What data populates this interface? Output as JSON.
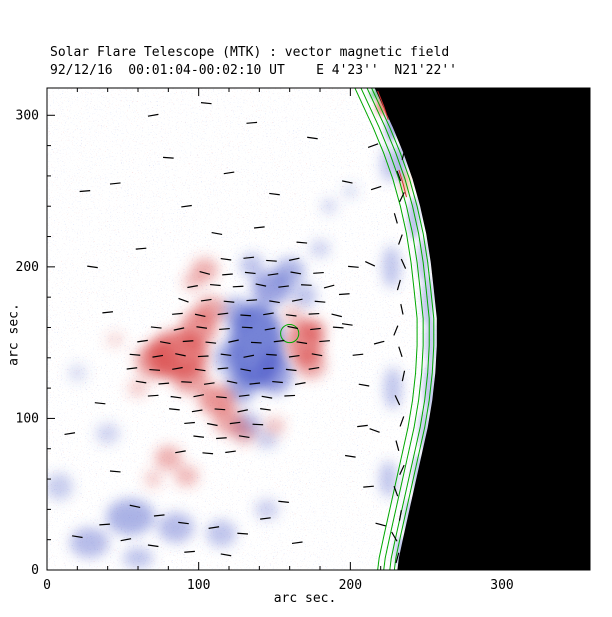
{
  "figure": {
    "title": "Solar Flare Telescope (MTK) : vector magnetic field",
    "subtitle": "92/12/16  00:01:04-00:02:10 UT    E 4'23''  N21'22''",
    "date": "92/12/16",
    "time_range": "00:01:04-00:02:10 UT",
    "position": "E 4'23''  N21'22''",
    "xlabel": "arc sec.",
    "ylabel": "arc sec."
  },
  "chart_data": {
    "type": "heatmap",
    "title": "Solar Flare Telescope (MTK) : vector magnetic field",
    "subtitle": "92/12/16  00:01:04-00:02:10 UT    E 4'23''  N21'22''",
    "xlabel": "arc sec.",
    "ylabel": "arc sec.",
    "xlim": [
      0,
      358
    ],
    "ylim": [
      0,
      318
    ],
    "xticks": [
      0,
      100,
      200,
      300
    ],
    "yticks": [
      0,
      100,
      200,
      300
    ],
    "minor_tick_step": 20,
    "legend": "none",
    "description": "Vector magnetogram of an active region near the solar limb: red = positive line-of-sight polarity, blue = negative polarity, black = off-limb sky, short black bars = transverse field vectors, green contours trace the limb.",
    "colors": {
      "positive_polarity": "#d84040",
      "negative_polarity": "#4858c8",
      "off_limb": "#000000",
      "contour_green": "#00a800",
      "contour_red": "#d03030",
      "vector": "#000000",
      "frame": "#000000"
    },
    "limb_points": [
      [
        216,
        318
      ],
      [
        222,
        305
      ],
      [
        228,
        292
      ],
      [
        235,
        275
      ],
      [
        241,
        258
      ],
      [
        246,
        240
      ],
      [
        250,
        222
      ],
      [
        253,
        203
      ],
      [
        255,
        185
      ],
      [
        257,
        166
      ],
      [
        257,
        148
      ],
      [
        256,
        130
      ],
      [
        254,
        112
      ],
      [
        251,
        94
      ],
      [
        247,
        76
      ],
      [
        243,
        58
      ],
      [
        239,
        40
      ],
      [
        235,
        22
      ],
      [
        232,
        8
      ],
      [
        231,
        0
      ]
    ],
    "green_contour_offsets": [
      2,
      5,
      9,
      13
    ],
    "green_loop": {
      "x": 160,
      "y": 156,
      "r": 6
    },
    "red_contours": [
      [
        [
          218,
          316
        ],
        [
          222,
          306
        ],
        [
          225,
          297
        ]
      ],
      [
        [
          232,
          264
        ],
        [
          235,
          254
        ],
        [
          237,
          246
        ]
      ]
    ],
    "red_blobs": [
      [
        86,
        142,
        20,
        16,
        0.7
      ],
      [
        72,
        138,
        14,
        12,
        0.5
      ],
      [
        100,
        160,
        12,
        12,
        0.55
      ],
      [
        108,
        172,
        10,
        9,
        0.45
      ],
      [
        95,
        126,
        12,
        10,
        0.5
      ],
      [
        112,
        112,
        12,
        10,
        0.55
      ],
      [
        120,
        98,
        10,
        9,
        0.45
      ],
      [
        130,
        90,
        8,
        7,
        0.35
      ],
      [
        170,
        150,
        12,
        15,
        0.6
      ],
      [
        174,
        136,
        10,
        10,
        0.45
      ],
      [
        176,
        158,
        8,
        8,
        0.45
      ],
      [
        162,
        168,
        7,
        6,
        0.3
      ],
      [
        104,
        198,
        9,
        8,
        0.4
      ],
      [
        96,
        190,
        7,
        6,
        0.3
      ],
      [
        80,
        74,
        9,
        8,
        0.4
      ],
      [
        92,
        62,
        8,
        7,
        0.35
      ],
      [
        70,
        60,
        6,
        6,
        0.25
      ],
      [
        150,
        95,
        7,
        6,
        0.3
      ],
      [
        60,
        120,
        7,
        6,
        0.25
      ],
      [
        45,
        152,
        6,
        5,
        0.2
      ]
    ],
    "blue_blobs": [
      [
        138,
        148,
        18,
        28,
        0.75
      ],
      [
        150,
        130,
        12,
        14,
        0.55
      ],
      [
        128,
        122,
        10,
        12,
        0.5
      ],
      [
        148,
        186,
        13,
        11,
        0.55
      ],
      [
        160,
        197,
        10,
        9,
        0.45
      ],
      [
        135,
        201,
        8,
        8,
        0.35
      ],
      [
        170,
        181,
        8,
        8,
        0.35
      ],
      [
        125,
        170,
        10,
        10,
        0.45
      ],
      [
        118,
        140,
        8,
        10,
        0.45
      ],
      [
        132,
        96,
        9,
        8,
        0.4
      ],
      [
        145,
        86,
        7,
        6,
        0.3
      ],
      [
        55,
        35,
        16,
        12,
        0.45
      ],
      [
        85,
        28,
        12,
        10,
        0.4
      ],
      [
        115,
        24,
        10,
        9,
        0.35
      ],
      [
        28,
        18,
        13,
        10,
        0.4
      ],
      [
        8,
        55,
        9,
        9,
        0.3
      ],
      [
        145,
        40,
        8,
        7,
        0.28
      ],
      [
        60,
        8,
        10,
        7,
        0.35
      ],
      [
        180,
        212,
        7,
        6,
        0.25
      ],
      [
        200,
        250,
        5,
        5,
        0.2
      ],
      [
        40,
        90,
        8,
        7,
        0.25
      ],
      [
        20,
        130,
        6,
        6,
        0.2
      ],
      [
        186,
        240,
        5,
        5,
        0.25
      ],
      [
        225,
        60,
        6,
        12,
        0.35
      ],
      [
        228,
        120,
        6,
        14,
        0.35
      ],
      [
        227,
        200,
        6,
        14,
        0.35
      ],
      [
        226,
        268,
        6,
        12,
        0.35
      ]
    ],
    "limb_band": [
      [
        219,
        314,
        6,
        4,
        "#40a878",
        0.65
      ],
      [
        222,
        306,
        5,
        6,
        "#d85848",
        0.7
      ],
      [
        227,
        292,
        4,
        9,
        "#7080d0",
        0.6
      ],
      [
        233,
        268,
        4,
        12,
        "#8090d8",
        0.5
      ],
      [
        236,
        255,
        3,
        8,
        "#e09858",
        0.55
      ],
      [
        242,
        232,
        4,
        14,
        "#8090d8",
        0.5
      ],
      [
        248,
        205,
        4,
        14,
        "#8090d8",
        0.45
      ],
      [
        251,
        178,
        4,
        16,
        "#8090d8",
        0.5
      ],
      [
        253,
        150,
        4,
        16,
        "#8090d8",
        0.45
      ],
      [
        252,
        120,
        4,
        16,
        "#8090d8",
        0.5
      ],
      [
        249,
        92,
        4,
        14,
        "#8090d8",
        0.45
      ],
      [
        245,
        62,
        4,
        14,
        "#8090d8",
        0.5
      ],
      [
        239,
        35,
        4,
        12,
        "#8090d8",
        0.45
      ],
      [
        233,
        12,
        4,
        10,
        "#8090d8",
        0.5
      ]
    ],
    "vector_length": 7,
    "vectors": [
      [
        118,
        205,
        -8
      ],
      [
        133,
        206,
        6
      ],
      [
        148,
        204,
        -4
      ],
      [
        163,
        205,
        12
      ],
      [
        104,
        196,
        -15
      ],
      [
        119,
        195,
        5
      ],
      [
        134,
        196,
        -6
      ],
      [
        149,
        195,
        8
      ],
      [
        164,
        196,
        -10
      ],
      [
        179,
        196,
        4
      ],
      [
        96,
        187,
        10
      ],
      [
        111,
        188,
        -5
      ],
      [
        126,
        187,
        3
      ],
      [
        141,
        188,
        -12
      ],
      [
        156,
        187,
        7
      ],
      [
        171,
        188,
        -3
      ],
      [
        186,
        187,
        15
      ],
      [
        90,
        178,
        -20
      ],
      [
        105,
        178,
        8
      ],
      [
        120,
        177,
        -6
      ],
      [
        135,
        178,
        4
      ],
      [
        150,
        177,
        -9
      ],
      [
        165,
        178,
        11
      ],
      [
        180,
        177,
        -5
      ],
      [
        86,
        169,
        5
      ],
      [
        101,
        168,
        -12
      ],
      [
        116,
        169,
        7
      ],
      [
        131,
        168,
        -4
      ],
      [
        146,
        169,
        9
      ],
      [
        161,
        168,
        -7
      ],
      [
        176,
        169,
        3
      ],
      [
        191,
        168,
        -14
      ],
      [
        72,
        160,
        -6
      ],
      [
        87,
        159,
        12
      ],
      [
        102,
        160,
        -8
      ],
      [
        117,
        159,
        5
      ],
      [
        132,
        160,
        -3
      ],
      [
        147,
        159,
        10
      ],
      [
        162,
        160,
        -11
      ],
      [
        177,
        159,
        6
      ],
      [
        192,
        160,
        -4
      ],
      [
        63,
        151,
        8
      ],
      [
        78,
        150,
        -10
      ],
      [
        93,
        151,
        4
      ],
      [
        108,
        150,
        -6
      ],
      [
        123,
        151,
        12
      ],
      [
        138,
        150,
        -3
      ],
      [
        153,
        151,
        7
      ],
      [
        168,
        150,
        -9
      ],
      [
        183,
        151,
        5
      ],
      [
        58,
        142,
        -5
      ],
      [
        73,
        141,
        9
      ],
      [
        88,
        142,
        -12
      ],
      [
        103,
        141,
        3
      ],
      [
        118,
        142,
        -7
      ],
      [
        133,
        141,
        11
      ],
      [
        148,
        142,
        -4
      ],
      [
        163,
        141,
        8
      ],
      [
        178,
        142,
        -10
      ],
      [
        56,
        133,
        7
      ],
      [
        71,
        132,
        -4
      ],
      [
        86,
        133,
        10
      ],
      [
        101,
        132,
        -8
      ],
      [
        116,
        133,
        5
      ],
      [
        131,
        132,
        -11
      ],
      [
        146,
        133,
        3
      ],
      [
        161,
        132,
        -6
      ],
      [
        176,
        133,
        9
      ],
      [
        62,
        124,
        -9
      ],
      [
        77,
        123,
        5
      ],
      [
        92,
        124,
        -3
      ],
      [
        107,
        123,
        8
      ],
      [
        122,
        124,
        -12
      ],
      [
        137,
        123,
        6
      ],
      [
        152,
        124,
        -5
      ],
      [
        167,
        123,
        10
      ],
      [
        70,
        115,
        4
      ],
      [
        85,
        114,
        -8
      ],
      [
        100,
        115,
        11
      ],
      [
        115,
        114,
        -5
      ],
      [
        130,
        115,
        7
      ],
      [
        145,
        114,
        -10
      ],
      [
        160,
        115,
        3
      ],
      [
        84,
        106,
        -6
      ],
      [
        99,
        105,
        9
      ],
      [
        114,
        106,
        -4
      ],
      [
        129,
        105,
        12
      ],
      [
        144,
        106,
        -8
      ],
      [
        94,
        97,
        5
      ],
      [
        109,
        96,
        -11
      ],
      [
        124,
        97,
        7
      ],
      [
        139,
        96,
        -3
      ],
      [
        100,
        88,
        -7
      ],
      [
        115,
        87,
        4
      ],
      [
        130,
        88,
        -9
      ],
      [
        88,
        78,
        10
      ],
      [
        106,
        77,
        -5
      ],
      [
        121,
        78,
        8
      ],
      [
        58,
        42,
        -12
      ],
      [
        74,
        36,
        6
      ],
      [
        90,
        31,
        -7
      ],
      [
        110,
        28,
        9
      ],
      [
        129,
        24,
        -4
      ],
      [
        52,
        20,
        11
      ],
      [
        70,
        16,
        -8
      ],
      [
        94,
        12,
        5
      ],
      [
        118,
        10,
        -10
      ],
      [
        144,
        34,
        7
      ],
      [
        156,
        45,
        -6
      ],
      [
        38,
        30,
        4
      ],
      [
        20,
        22,
        -9
      ],
      [
        165,
        18,
        8
      ],
      [
        112,
        222,
        -10
      ],
      [
        140,
        226,
        6
      ],
      [
        168,
        216,
        -5
      ],
      [
        92,
        240,
        8
      ],
      [
        198,
        256,
        -12
      ],
      [
        62,
        212,
        5
      ],
      [
        150,
        248,
        -7
      ],
      [
        120,
        262,
        9
      ],
      [
        80,
        272,
        -4
      ],
      [
        45,
        255,
        6
      ],
      [
        175,
        285,
        -8
      ],
      [
        135,
        295,
        5
      ],
      [
        105,
        308,
        -6
      ],
      [
        70,
        300,
        10
      ],
      [
        198,
        162,
        -8
      ],
      [
        205,
        142,
        6
      ],
      [
        209,
        122,
        -10
      ],
      [
        196,
        182,
        4
      ],
      [
        202,
        200,
        -5
      ],
      [
        208,
        95,
        7
      ],
      [
        200,
        75,
        -9
      ],
      [
        212,
        55,
        5
      ],
      [
        40,
        170,
        6
      ],
      [
        30,
        200,
        -8
      ],
      [
        25,
        250,
        5
      ],
      [
        35,
        110,
        -6
      ],
      [
        15,
        90,
        9
      ],
      [
        45,
        65,
        -5
      ],
      [
        231,
        8,
        75
      ],
      [
        229,
        22,
        -60
      ],
      [
        233,
        36,
        80
      ],
      [
        230,
        52,
        -70
      ],
      [
        234,
        66,
        65
      ],
      [
        231,
        82,
        -75
      ],
      [
        234,
        98,
        70
      ],
      [
        231,
        112,
        -65
      ],
      [
        235,
        128,
        78
      ],
      [
        233,
        144,
        -72
      ],
      [
        230,
        158,
        68
      ],
      [
        234,
        172,
        -78
      ],
      [
        232,
        188,
        74
      ],
      [
        235,
        202,
        -66
      ],
      [
        233,
        218,
        70
      ],
      [
        230,
        232,
        -74
      ],
      [
        234,
        246,
        64
      ],
      [
        232,
        260,
        -70
      ],
      [
        235,
        274,
        76
      ],
      [
        233,
        288,
        -68
      ],
      [
        231,
        302,
        72
      ],
      [
        228,
        312,
        -60
      ],
      [
        216,
        92,
        -20
      ],
      [
        219,
        150,
        15
      ],
      [
        213,
        202,
        -25
      ],
      [
        217,
        252,
        18
      ],
      [
        220,
        30,
        -15
      ],
      [
        215,
        280,
        20
      ]
    ]
  }
}
